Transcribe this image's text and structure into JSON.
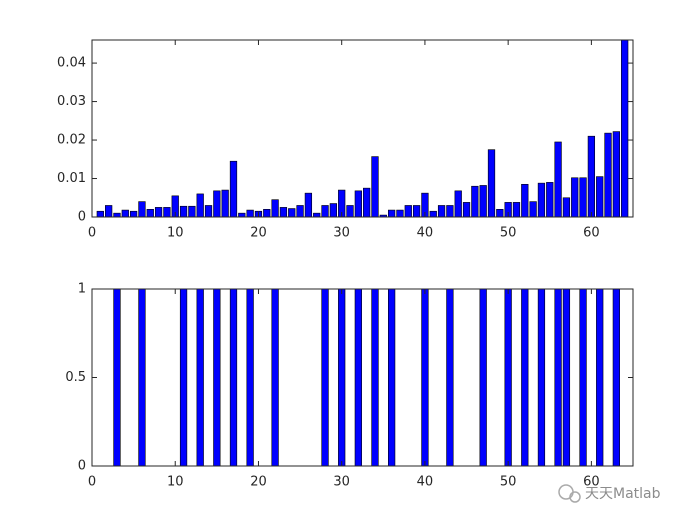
{
  "chart_data": [
    {
      "type": "bar",
      "color": "#0000ff",
      "x": [
        1,
        2,
        3,
        4,
        5,
        6,
        7,
        8,
        9,
        10,
        11,
        12,
        13,
        14,
        15,
        16,
        17,
        18,
        19,
        20,
        21,
        22,
        23,
        24,
        25,
        26,
        27,
        28,
        29,
        30,
        31,
        32,
        33,
        34,
        35,
        36,
        37,
        38,
        39,
        40,
        41,
        42,
        43,
        44,
        45,
        46,
        47,
        48,
        49,
        50,
        51,
        52,
        53,
        54,
        55,
        56,
        57,
        58,
        59,
        60,
        61,
        62,
        63,
        64
      ],
      "values": [
        0.0015,
        0.003,
        0.001,
        0.0018,
        0.0015,
        0.004,
        0.002,
        0.0025,
        0.0025,
        0.0055,
        0.0028,
        0.0028,
        0.006,
        0.003,
        0.0068,
        0.007,
        0.0145,
        0.001,
        0.0018,
        0.0015,
        0.002,
        0.0045,
        0.0025,
        0.0022,
        0.003,
        0.0062,
        0.001,
        0.003,
        0.0035,
        0.007,
        0.003,
        0.0068,
        0.0075,
        0.0157,
        0.0005,
        0.0018,
        0.0018,
        0.003,
        0.003,
        0.0062,
        0.0015,
        0.003,
        0.003,
        0.0068,
        0.0038,
        0.008,
        0.0082,
        0.0175,
        0.002,
        0.0038,
        0.0038,
        0.0085,
        0.004,
        0.0088,
        0.009,
        0.0195,
        0.005,
        0.0102,
        0.0102,
        0.021,
        0.0105,
        0.0218,
        0.0222,
        0.046
      ],
      "xlim": [
        0,
        65
      ],
      "xticks": [
        0,
        10,
        20,
        30,
        40,
        50,
        60
      ],
      "ylim": [
        0,
        0.046
      ],
      "yticks": [
        0,
        0.01,
        0.02,
        0.03,
        0.04
      ]
    },
    {
      "type": "bar",
      "color": "#0000ff",
      "x": [
        1,
        2,
        3,
        4,
        5,
        6,
        7,
        8,
        9,
        10,
        11,
        12,
        13,
        14,
        15,
        16,
        17,
        18,
        19,
        20,
        21,
        22,
        23,
        24,
        25,
        26,
        27,
        28,
        29,
        30,
        31,
        32,
        33,
        34,
        35,
        36,
        37,
        38,
        39,
        40,
        41,
        42,
        43,
        44,
        45,
        46,
        47,
        48,
        49,
        50,
        51,
        52,
        53,
        54,
        55,
        56,
        57,
        58,
        59,
        60,
        61,
        62,
        63,
        64
      ],
      "values": [
        0,
        0,
        1,
        0,
        0,
        1,
        0,
        0,
        0,
        0,
        1,
        0,
        1,
        0,
        1,
        0,
        1,
        0,
        1,
        0,
        0,
        1,
        0,
        0,
        0,
        0,
        0,
        1,
        0,
        1,
        0,
        1,
        0,
        1,
        0,
        1,
        0,
        0,
        0,
        1,
        0,
        0,
        1,
        0,
        0,
        0,
        1,
        0,
        0,
        1,
        0,
        1,
        0,
        1,
        0,
        1,
        1,
        0,
        1,
        0,
        1,
        0,
        1,
        0
      ],
      "xlim": [
        0,
        65
      ],
      "xticks": [
        0,
        10,
        20,
        30,
        40,
        50,
        60
      ],
      "ylim": [
        0,
        1
      ],
      "yticks": [
        0,
        0.5,
        1
      ]
    }
  ],
  "watermark": "天天Matlab"
}
